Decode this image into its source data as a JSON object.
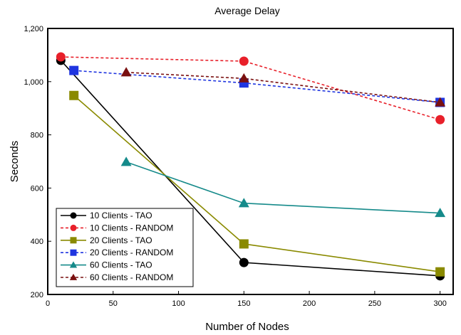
{
  "chart_data": {
    "type": "line",
    "title": "Average Delay",
    "xlabel": "Number of Nodes",
    "ylabel": "Seconds",
    "xlim": [
      0,
      310
    ],
    "ylim": [
      200,
      1200
    ],
    "x_ticks": [
      0,
      50,
      100,
      150,
      200,
      250,
      300
    ],
    "y_ticks": [
      200,
      400,
      600,
      800,
      1000,
      1200
    ],
    "x_tick_labels": [
      "0",
      "50",
      "100",
      "150",
      "200",
      "250",
      "300"
    ],
    "y_tick_labels": [
      "200",
      "400",
      "600",
      "800",
      "1,000",
      "1,200"
    ],
    "grid": false,
    "legend_position": "bottom-left",
    "series": [
      {
        "name": "10 Clients - TAO",
        "color": "#000000",
        "dash": "solid",
        "marker": "circle",
        "x": [
          10,
          150,
          300
        ],
        "y": [
          1080,
          320,
          270
        ]
      },
      {
        "name": "10 Clients - RANDOM",
        "color": "#e8202a",
        "dash": "dashed",
        "marker": "circle",
        "x": [
          10,
          150,
          300
        ],
        "y": [
          1093,
          1077,
          857
        ]
      },
      {
        "name": "20 Clients - TAO",
        "color": "#8a8a00",
        "dash": "solid",
        "marker": "square",
        "x": [
          20,
          150,
          300
        ],
        "y": [
          948,
          390,
          285
        ]
      },
      {
        "name": "20 Clients - RANDOM",
        "color": "#1f35e0",
        "dash": "dashed",
        "marker": "square",
        "x": [
          20,
          150,
          300
        ],
        "y": [
          1042,
          995,
          922
        ]
      },
      {
        "name": "60 Clients - TAO",
        "color": "#158a8a",
        "dash": "solid",
        "marker": "triangle",
        "x": [
          60,
          150,
          300
        ],
        "y": [
          698,
          543,
          506
        ]
      },
      {
        "name": "60 Clients - RANDOM",
        "color": "#7a1010",
        "dash": "dashed",
        "marker": "triangle",
        "x": [
          60,
          150,
          300
        ],
        "y": [
          1035,
          1012,
          922
        ]
      }
    ]
  }
}
